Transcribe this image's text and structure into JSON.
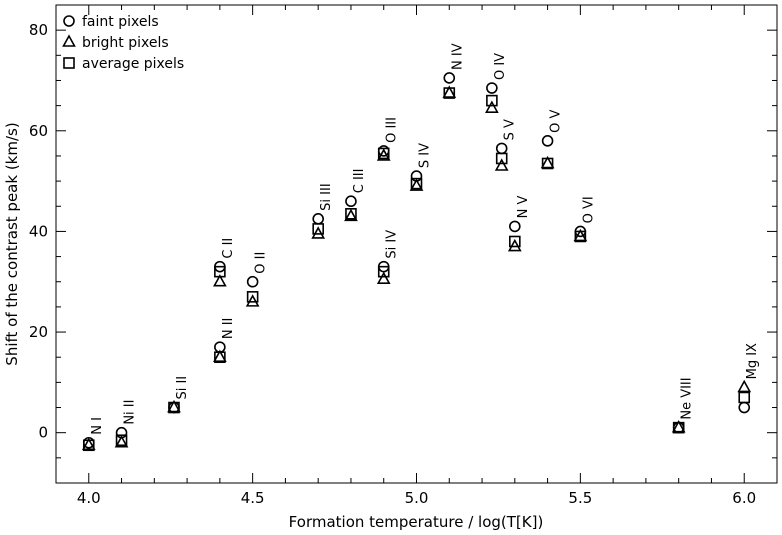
{
  "chart_data": {
    "type": "scatter",
    "title": "",
    "xlabel": "Formation temperature / log(T[K])",
    "ylabel": "Shift of the contrast peak (km/s)",
    "xlim": [
      3.9,
      6.1
    ],
    "ylim": [
      -10,
      85
    ],
    "xticks": [
      4.0,
      4.5,
      5.0,
      5.5,
      6.0
    ],
    "xtick_labels": [
      "4.0",
      "4.5",
      "5.0",
      "5.5",
      "6.0"
    ],
    "yticks": [
      0,
      20,
      40,
      60,
      80
    ],
    "ytick_labels": [
      "0",
      "20",
      "40",
      "60",
      "80"
    ],
    "grid": false,
    "legend_position": "top-left",
    "series": [
      {
        "name": "faint pixels",
        "marker": "circle",
        "points": [
          {
            "x": 4.0,
            "y": -2
          },
          {
            "x": 4.1,
            "y": 0
          },
          {
            "x": 4.26,
            "y": 5
          },
          {
            "x": 4.4,
            "y": 17
          },
          {
            "x": 4.4,
            "y": 33
          },
          {
            "x": 4.5,
            "y": 30
          },
          {
            "x": 4.7,
            "y": 42.5
          },
          {
            "x": 4.8,
            "y": 46
          },
          {
            "x": 4.9,
            "y": 56
          },
          {
            "x": 4.9,
            "y": 33
          },
          {
            "x": 5.0,
            "y": 51
          },
          {
            "x": 5.1,
            "y": 70.5
          },
          {
            "x": 5.23,
            "y": 68.5
          },
          {
            "x": 5.26,
            "y": 56.5
          },
          {
            "x": 5.3,
            "y": 41
          },
          {
            "x": 5.4,
            "y": 58
          },
          {
            "x": 5.5,
            "y": 40
          },
          {
            "x": 5.8,
            "y": 1
          },
          {
            "x": 6.0,
            "y": 5
          }
        ]
      },
      {
        "name": "bright pixels",
        "marker": "triangle",
        "points": [
          {
            "x": 4.0,
            "y": -2.5
          },
          {
            "x": 4.1,
            "y": -2
          },
          {
            "x": 4.26,
            "y": 5
          },
          {
            "x": 4.4,
            "y": 15
          },
          {
            "x": 4.4,
            "y": 30
          },
          {
            "x": 4.5,
            "y": 26
          },
          {
            "x": 4.7,
            "y": 39.5
          },
          {
            "x": 4.8,
            "y": 43
          },
          {
            "x": 4.9,
            "y": 55
          },
          {
            "x": 4.9,
            "y": 30.5
          },
          {
            "x": 5.0,
            "y": 49
          },
          {
            "x": 5.1,
            "y": 67.5
          },
          {
            "x": 5.23,
            "y": 64.5
          },
          {
            "x": 5.26,
            "y": 53
          },
          {
            "x": 5.3,
            "y": 37
          },
          {
            "x": 5.4,
            "y": 53.5
          },
          {
            "x": 5.5,
            "y": 39
          },
          {
            "x": 5.8,
            "y": 1
          },
          {
            "x": 6.0,
            "y": 9
          }
        ]
      },
      {
        "name": "average pixels",
        "marker": "square",
        "points": [
          {
            "x": 4.0,
            "y": -2.5
          },
          {
            "x": 4.1,
            "y": -1.5
          },
          {
            "x": 4.26,
            "y": 5
          },
          {
            "x": 4.4,
            "y": 15
          },
          {
            "x": 4.4,
            "y": 32
          },
          {
            "x": 4.5,
            "y": 27
          },
          {
            "x": 4.7,
            "y": 40.5
          },
          {
            "x": 4.8,
            "y": 43.5
          },
          {
            "x": 4.9,
            "y": 55.5
          },
          {
            "x": 4.9,
            "y": 32
          },
          {
            "x": 5.0,
            "y": 49.5
          },
          {
            "x": 5.1,
            "y": 67.5
          },
          {
            "x": 5.23,
            "y": 66
          },
          {
            "x": 5.26,
            "y": 54.5
          },
          {
            "x": 5.3,
            "y": 38
          },
          {
            "x": 5.4,
            "y": 53.5
          },
          {
            "x": 5.5,
            "y": 39
          },
          {
            "x": 5.8,
            "y": 1
          },
          {
            "x": 6.0,
            "y": 7
          }
        ]
      }
    ],
    "annotations": [
      {
        "text": "N I",
        "x": 4.0,
        "y": -2
      },
      {
        "text": "Ni II",
        "x": 4.1,
        "y": 0
      },
      {
        "text": "Si II",
        "x": 4.26,
        "y": 5
      },
      {
        "text": "N II",
        "x": 4.4,
        "y": 17
      },
      {
        "text": "C II",
        "x": 4.4,
        "y": 33
      },
      {
        "text": "O II",
        "x": 4.5,
        "y": 30
      },
      {
        "text": "Si III",
        "x": 4.7,
        "y": 42.5
      },
      {
        "text": "C III",
        "x": 4.8,
        "y": 46
      },
      {
        "text": "O III",
        "x": 4.9,
        "y": 56
      },
      {
        "text": "Si IV",
        "x": 4.9,
        "y": 33
      },
      {
        "text": "S IV",
        "x": 5.0,
        "y": 51
      },
      {
        "text": "N IV",
        "x": 5.1,
        "y": 70.5
      },
      {
        "text": "O IV",
        "x": 5.23,
        "y": 68.5
      },
      {
        "text": "S V",
        "x": 5.26,
        "y": 56.5
      },
      {
        "text": "N V",
        "x": 5.3,
        "y": 41
      },
      {
        "text": "O V",
        "x": 5.4,
        "y": 58
      },
      {
        "text": "O VI",
        "x": 5.5,
        "y": 40
      },
      {
        "text": "Ne VIII",
        "x": 5.8,
        "y": 1
      },
      {
        "text": "Mg IX",
        "x": 6.0,
        "y": 9
      }
    ]
  }
}
